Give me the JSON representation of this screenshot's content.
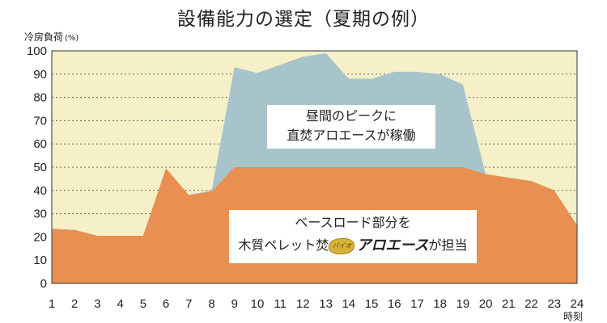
{
  "chart_data": {
    "type": "area",
    "title": "設備能力の選定（夏期の例）",
    "ylabel": "冷房負荷",
    "yunit": "(%)",
    "xlabel": "時刻",
    "x": [
      1,
      2,
      3,
      4,
      5,
      6,
      7,
      8,
      9,
      10,
      11,
      12,
      13,
      14,
      15,
      16,
      17,
      18,
      19,
      20,
      21,
      22,
      23,
      24
    ],
    "ylim": [
      0,
      100
    ],
    "yticks": [
      0,
      10,
      20,
      30,
      40,
      50,
      60,
      70,
      80,
      90,
      100
    ],
    "grid": "horizontal dotted",
    "series": [
      {
        "color": "#e98f52",
        "values": [
          23.5,
          23,
          20.5,
          20.5,
          20.5,
          49.5,
          38,
          39.5,
          50,
          50,
          50,
          50,
          50,
          50,
          50,
          50,
          50,
          50,
          50,
          47,
          45.5,
          44,
          40,
          25
        ]
      },
      {
        "color": "#a8c4cb",
        "values": [
          23.5,
          23,
          20.5,
          20.5,
          20.5,
          49.5,
          38,
          40,
          93,
          90.5,
          94,
          97.5,
          99,
          88,
          88,
          91,
          91,
          90,
          85.5,
          47,
          45.5,
          44,
          40,
          25
        ]
      }
    ],
    "colors": {
      "background": "#f5f0c7",
      "grid": "#666666",
      "axis": "#333333"
    },
    "annotations": {
      "peak_line1": "昼間のピークに",
      "peak_line2": "直焚アロエースが稼働",
      "base_line1": "ベースロード部分を",
      "base_line2_a": "木質ペレット焚",
      "base_logo": "バイオ",
      "base_brand": "アロエース",
      "base_line2_b": "が担当"
    }
  }
}
